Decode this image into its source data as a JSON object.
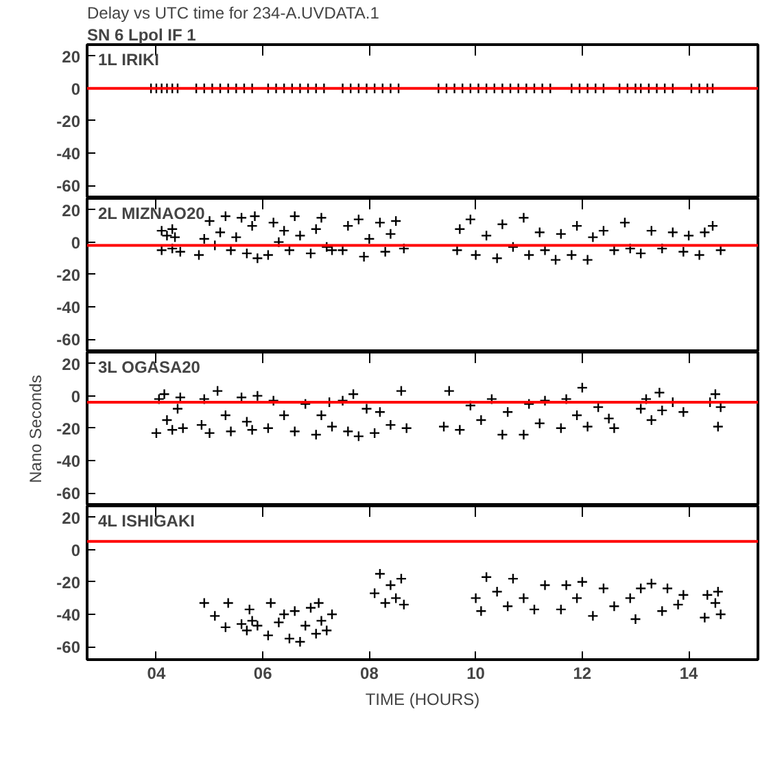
{
  "chart_data": [
    {
      "type": "scatter",
      "title": "Delay vs UTC time for 234-A.UVDATA.1",
      "subtitle": "SN 6  Lpol  IF 1",
      "annotations": [
        "1L IRIKI"
      ],
      "marker": "cross",
      "grid": false,
      "tick_labels": "y",
      "xlim": [
        2.7,
        15.3
      ],
      "ylim": [
        -68,
        27
      ],
      "xticks": [
        4,
        6,
        8,
        10,
        12,
        14
      ],
      "yticks": [
        -60,
        -40,
        -20,
        0,
        20
      ],
      "ref_lines": [
        {
          "axis": "y",
          "value": 0,
          "color": "#ff0000"
        }
      ],
      "series": [
        {
          "color": "#000000",
          "x": [
            3.9,
            4.0,
            4.1,
            4.2,
            4.3,
            4.4,
            4.75,
            4.9,
            5.05,
            5.2,
            5.35,
            5.5,
            5.65,
            5.8,
            6.1,
            6.25,
            6.4,
            6.55,
            6.7,
            6.85,
            7.0,
            7.15,
            7.5,
            7.65,
            7.8,
            7.95,
            8.1,
            8.25,
            8.4,
            8.55,
            9.3,
            9.45,
            9.6,
            9.75,
            9.9,
            10.05,
            10.2,
            10.35,
            10.5,
            10.65,
            10.8,
            10.95,
            11.1,
            11.25,
            11.4,
            11.8,
            11.95,
            12.1,
            12.25,
            12.4,
            12.7,
            12.85,
            13.0,
            13.1,
            13.25,
            13.4,
            13.55,
            13.7,
            14.05,
            14.2,
            14.35,
            14.45
          ],
          "values": [
            0,
            0,
            0,
            0,
            0,
            0,
            0,
            0,
            0,
            0,
            0,
            0,
            0,
            0,
            0,
            0,
            0,
            0,
            0,
            0,
            0,
            0,
            0,
            0,
            0,
            0,
            0,
            0,
            0,
            0,
            0,
            0,
            0,
            0,
            0,
            0,
            0,
            0,
            0,
            0,
            0,
            0,
            0,
            0,
            0,
            0,
            0,
            0,
            0,
            0,
            0,
            0,
            0,
            0,
            0,
            0,
            0,
            0,
            0,
            0,
            0,
            0
          ]
        }
      ]
    },
    {
      "type": "scatter",
      "annotations": [
        "2L MIZNAO20"
      ],
      "marker": "cross",
      "grid": false,
      "tick_labels": "y",
      "xlim": [
        2.7,
        15.3
      ],
      "ylim": [
        -68,
        27
      ],
      "xticks": [
        4,
        6,
        8,
        10,
        12,
        14
      ],
      "yticks": [
        -60,
        -40,
        -20,
        0,
        20
      ],
      "ref_lines": [
        {
          "axis": "y",
          "value": -2,
          "color": "#ff0000"
        }
      ],
      "series": [
        {
          "color": "#000000",
          "x": [
            4.1,
            4.2,
            4.3,
            4.35,
            4.1,
            4.3,
            4.45,
            4.8,
            4.9,
            5.0,
            5.1,
            5.2,
            5.3,
            5.4,
            5.5,
            5.6,
            5.7,
            5.8,
            5.9,
            5.85,
            6.1,
            6.2,
            6.3,
            6.5,
            6.6,
            6.7,
            6.9,
            7.0,
            7.1,
            7.2,
            7.3,
            6.4,
            7.5,
            7.6,
            7.8,
            7.9,
            8.0,
            8.2,
            8.3,
            8.4,
            8.5,
            8.65,
            9.65,
            9.7,
            9.9,
            10.0,
            10.2,
            10.4,
            10.5,
            10.7,
            10.9,
            11.0,
            11.2,
            11.3,
            11.5,
            11.6,
            11.8,
            11.9,
            12.1,
            12.2,
            12.4,
            12.6,
            12.8,
            12.9,
            13.1,
            13.3,
            13.5,
            13.7,
            13.9,
            14.0,
            14.2,
            14.3,
            14.45,
            14.6
          ],
          "values": [
            7,
            4,
            8,
            3,
            -5,
            -4,
            -6,
            -8,
            2,
            13,
            -2,
            6,
            16,
            -5,
            3,
            15,
            -7,
            10,
            -10,
            16,
            -8,
            12,
            0,
            -5,
            16,
            4,
            -7,
            8,
            15,
            -3,
            -5,
            7,
            -5,
            10,
            14,
            -9,
            2,
            12,
            -6,
            5,
            13,
            -4,
            -5,
            8,
            14,
            -8,
            4,
            -10,
            11,
            -3,
            15,
            -8,
            6,
            -5,
            -11,
            5,
            -8,
            10,
            -11,
            3,
            7,
            -5,
            12,
            -4,
            -7,
            7,
            -4,
            6,
            -6,
            4,
            -8,
            6,
            10,
            -5
          ]
        }
      ]
    },
    {
      "type": "scatter",
      "annotations": [
        "3L OGASA20"
      ],
      "ylabel": "Nano Seconds",
      "marker": "cross",
      "grid": false,
      "tick_labels": "y",
      "xlim": [
        2.7,
        15.3
      ],
      "ylim": [
        -68,
        27
      ],
      "xticks": [
        4,
        6,
        8,
        10,
        12,
        14
      ],
      "yticks": [
        -60,
        -40,
        -20,
        0,
        20
      ],
      "ref_lines": [
        {
          "axis": "y",
          "value": -4,
          "color": "#ff0000"
        }
      ],
      "series": [
        {
          "color": "#000000",
          "x": [
            4.0,
            4.05,
            4.15,
            4.2,
            4.3,
            4.4,
            4.45,
            4.5,
            4.85,
            4.9,
            5.0,
            5.15,
            5.3,
            5.4,
            5.6,
            5.7,
            5.8,
            5.9,
            6.1,
            6.2,
            6.4,
            6.6,
            6.8,
            7.0,
            7.1,
            7.3,
            7.25,
            7.5,
            7.6,
            7.7,
            7.8,
            7.95,
            8.1,
            8.2,
            8.4,
            8.6,
            8.7,
            9.4,
            9.5,
            9.7,
            9.9,
            10.1,
            10.3,
            10.5,
            10.6,
            10.9,
            11.0,
            11.2,
            11.3,
            11.6,
            11.7,
            11.9,
            12.0,
            12.1,
            12.3,
            12.5,
            12.6,
            13.1,
            13.2,
            13.3,
            13.45,
            13.5,
            13.7,
            13.9,
            14.4,
            14.5,
            14.55,
            14.6
          ],
          "values": [
            -23,
            -2,
            1,
            -15,
            -21,
            -8,
            -1,
            -20,
            -18,
            -2,
            -23,
            3,
            -12,
            -22,
            -1,
            -16,
            -21,
            0,
            -20,
            -3,
            -12,
            -22,
            -5,
            -24,
            -12,
            -19,
            -4,
            -3,
            -22,
            1,
            -25,
            -8,
            -23,
            -10,
            -18,
            3,
            -20,
            -19,
            3,
            -21,
            -6,
            -15,
            -2,
            -24,
            -10,
            -24,
            -5,
            -17,
            -3,
            -20,
            -2,
            -12,
            5,
            -19,
            -7,
            -14,
            -20,
            -8,
            -2,
            -15,
            2,
            -9,
            -4,
            -10,
            -4,
            1,
            -19,
            -7
          ]
        }
      ]
    },
    {
      "type": "scatter",
      "annotations": [
        "4L ISHIGAKI"
      ],
      "xlabel": "TIME (HOURS)",
      "marker": "cross",
      "grid": false,
      "xlim": [
        2.7,
        15.3
      ],
      "ylim": [
        -68,
        27
      ],
      "xticks": [
        {
          "value": 4,
          "label": "04"
        },
        {
          "value": 6,
          "label": "06"
        },
        {
          "value": 8,
          "label": "08"
        },
        10,
        12,
        14
      ],
      "yticks": [
        -60,
        -40,
        -20,
        0,
        20
      ],
      "ref_lines": [
        {
          "axis": "y",
          "value": 5,
          "color": "#ff0000"
        }
      ],
      "series": [
        {
          "color": "#000000",
          "x": [
            4.9,
            5.1,
            5.3,
            5.35,
            5.6,
            5.7,
            5.75,
            5.8,
            5.9,
            6.1,
            6.15,
            6.3,
            6.4,
            6.5,
            6.6,
            6.7,
            6.8,
            6.9,
            7.0,
            7.05,
            7.1,
            7.2,
            7.3,
            8.1,
            8.2,
            8.3,
            8.4,
            8.5,
            8.6,
            8.65,
            10.0,
            10.1,
            10.2,
            10.4,
            10.6,
            10.7,
            10.9,
            11.1,
            11.3,
            11.6,
            11.7,
            11.9,
            12.0,
            12.2,
            12.4,
            12.6,
            12.9,
            13.0,
            13.1,
            13.3,
            13.5,
            13.6,
            13.8,
            13.9,
            14.3,
            14.35,
            14.5,
            14.6,
            14.55
          ],
          "values": [
            -33,
            -41,
            -48,
            -33,
            -46,
            -50,
            -37,
            -44,
            -47,
            -53,
            -33,
            -45,
            -40,
            -55,
            -38,
            -57,
            -47,
            -36,
            -52,
            -33,
            -44,
            -50,
            -40,
            -27,
            -15,
            -33,
            -22,
            -30,
            -18,
            -34,
            -30,
            -38,
            -17,
            -26,
            -35,
            -18,
            -30,
            -37,
            -22,
            -37,
            -22,
            -30,
            -20,
            -41,
            -24,
            -35,
            -30,
            -43,
            -24,
            -21,
            -38,
            -24,
            -34,
            -28,
            -42,
            -28,
            -33,
            -40,
            -26
          ]
        }
      ]
    }
  ]
}
